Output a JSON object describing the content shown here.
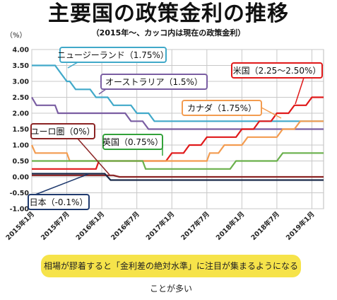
{
  "title": "主要国の政策金利の推移",
  "subtitle": "（2015年〜、カッコ内は現在の政策金利）",
  "note": "相場が膠着すると「金利差の絶対水準」に注目が集まるようになることが多い",
  "chart_data": {
    "type": "line",
    "title": "主要国の政策金利の推移",
    "subtitle": "（2015年〜、カッコ内は現在の政策金利）",
    "ylabel": "（%）",
    "ylim": [
      -1.0,
      4.0
    ],
    "yticks": [
      "4.00",
      "3.50",
      "3.00",
      "2.50",
      "2.00",
      "1.50",
      "1.00",
      "0.50",
      "0.00",
      "-0.50",
      "-1.00"
    ],
    "x_tick_labels": [
      "2015年1月",
      "2015年7月",
      "2016年1月",
      "2016年7月",
      "2017年1月",
      "2017年7月",
      "2018年1月",
      "2018年7月",
      "2019年1月"
    ],
    "grid": true,
    "series": [
      {
        "name": "ニュージーランド（1.75%）",
        "color": "#41a9c9",
        "label_color": "#41a9c9",
        "points": [
          [
            0,
            3.5
          ],
          [
            4,
            3.5
          ],
          [
            5,
            3.25
          ],
          [
            6,
            3.0
          ],
          [
            6.5,
            3.0
          ],
          [
            7.5,
            2.75
          ],
          [
            10,
            2.75
          ],
          [
            11,
            2.5
          ],
          [
            13,
            2.5
          ],
          [
            14,
            2.25
          ],
          [
            17,
            2.25
          ],
          [
            18,
            2.0
          ],
          [
            20,
            2.0
          ],
          [
            21,
            1.75
          ],
          [
            50,
            1.75
          ]
        ]
      },
      {
        "name": "オーストラリア（1.5%）",
        "color": "#7a5ea2",
        "label_color": "#7a5ea2",
        "points": [
          [
            0,
            2.5
          ],
          [
            0.8,
            2.25
          ],
          [
            4,
            2.25
          ],
          [
            4.5,
            2.0
          ],
          [
            16,
            2.0
          ],
          [
            17,
            1.75
          ],
          [
            19,
            1.75
          ],
          [
            20,
            1.5
          ],
          [
            50,
            1.5
          ]
        ]
      },
      {
        "name": "米国（2.25〜2.50%）",
        "color": "#e0191a",
        "label_color": "#e0191a",
        "points": [
          [
            0,
            0.25
          ],
          [
            11,
            0.25
          ],
          [
            11.5,
            0.5
          ],
          [
            23,
            0.5
          ],
          [
            24,
            0.75
          ],
          [
            26,
            0.75
          ],
          [
            27,
            1.0
          ],
          [
            29,
            1.0
          ],
          [
            30,
            1.25
          ],
          [
            35,
            1.25
          ],
          [
            36,
            1.5
          ],
          [
            38,
            1.5
          ],
          [
            39,
            1.75
          ],
          [
            41,
            1.75
          ],
          [
            42,
            2.0
          ],
          [
            44,
            2.0
          ],
          [
            45,
            2.25
          ],
          [
            47,
            2.25
          ],
          [
            48,
            2.5
          ],
          [
            50,
            2.5
          ]
        ]
      },
      {
        "name": "カナダ（1.75%）",
        "color": "#f39c50",
        "label_color": "#f39c50",
        "points": [
          [
            0,
            1.0
          ],
          [
            0.6,
            0.75
          ],
          [
            6,
            0.75
          ],
          [
            6.5,
            0.5
          ],
          [
            30,
            0.5
          ],
          [
            30.5,
            0.75
          ],
          [
            32,
            0.75
          ],
          [
            33,
            1.0
          ],
          [
            36,
            1.0
          ],
          [
            37,
            1.25
          ],
          [
            42,
            1.25
          ],
          [
            43,
            1.5
          ],
          [
            45,
            1.5
          ],
          [
            46,
            1.75
          ],
          [
            50,
            1.75
          ]
        ]
      },
      {
        "name": "英国（0.75%）",
        "color": "#6ab04c",
        "label_color": "#33a23a",
        "points": [
          [
            0,
            0.5
          ],
          [
            19,
            0.5
          ],
          [
            19.5,
            0.25
          ],
          [
            34,
            0.25
          ],
          [
            35,
            0.5
          ],
          [
            42,
            0.5
          ],
          [
            43,
            0.75
          ],
          [
            50,
            0.75
          ]
        ]
      },
      {
        "name": "ユーロ圏（0%）",
        "color": "#8b2323",
        "label_color": "#8b2323",
        "points": [
          [
            0,
            0.05
          ],
          [
            14,
            0.05
          ],
          [
            15,
            0.0
          ],
          [
            50,
            0.0
          ]
        ]
      },
      {
        "name": "日本（-0.1%）",
        "color": "#1a2a4a",
        "label_color": "#1f3a6e",
        "points": [
          [
            0,
            0.1
          ],
          [
            12.5,
            0.1
          ],
          [
            13.5,
            -0.1
          ],
          [
            50,
            -0.1
          ]
        ]
      }
    ]
  }
}
